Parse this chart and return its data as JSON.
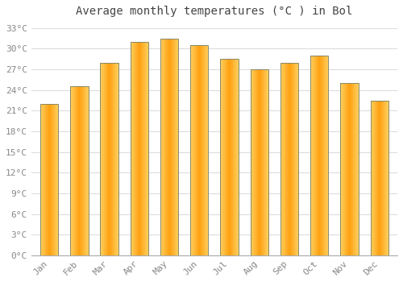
{
  "title": "Average monthly temperatures (°C ) in Bol",
  "months": [
    "Jan",
    "Feb",
    "Mar",
    "Apr",
    "May",
    "Jun",
    "Jul",
    "Aug",
    "Sep",
    "Oct",
    "Nov",
    "Dec"
  ],
  "temperatures": [
    22.0,
    24.5,
    28.0,
    31.0,
    31.5,
    30.5,
    28.5,
    27.0,
    28.0,
    29.0,
    25.0,
    22.5
  ],
  "ylim": [
    0,
    34
  ],
  "yticks": [
    0,
    3,
    6,
    9,
    12,
    15,
    18,
    21,
    24,
    27,
    30,
    33
  ],
  "ytick_labels": [
    "0°C",
    "3°C",
    "6°C",
    "9°C",
    "12°C",
    "15°C",
    "18°C",
    "21°C",
    "24°C",
    "27°C",
    "30°C",
    "33°C"
  ],
  "bar_color_center": "#FFA010",
  "bar_color_edge": "#FFD060",
  "bar_edge_color": "#888866",
  "background_color": "#FFFFFF",
  "grid_color": "#DDDDDD",
  "title_fontsize": 10,
  "tick_fontsize": 8,
  "title_color": "#444444",
  "tick_color": "#888888",
  "bar_width": 0.6
}
